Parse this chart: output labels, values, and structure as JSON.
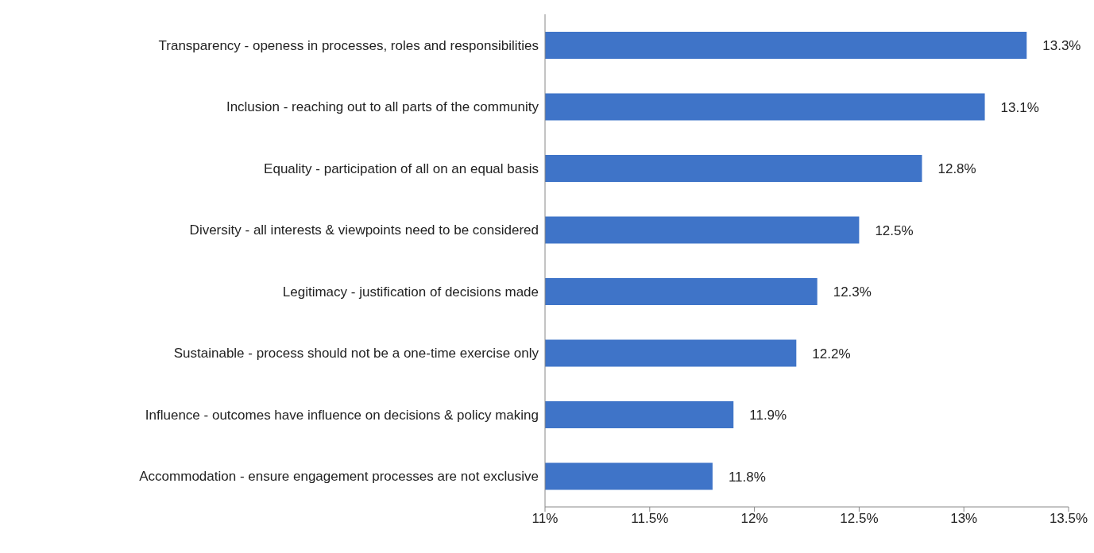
{
  "chart_data": {
    "type": "bar",
    "orientation": "horizontal",
    "categories": [
      "Transparency - openess in processes, roles and responsibilities",
      "Inclusion - reaching out to all parts of the community",
      "Equality - participation of all on an equal basis",
      "Diversity - all interests & viewpoints need to be considered",
      "Legitimacy - justification of decisions made",
      "Sustainable - process should not be a one-time exercise only",
      "Influence - outcomes have influence on decisions & policy making",
      "Accommodation - ensure engagement processes are not exclusive"
    ],
    "values": [
      13.3,
      13.1,
      12.8,
      12.5,
      12.3,
      12.2,
      11.9,
      11.8
    ],
    "value_labels": [
      "13.3%",
      "13.1%",
      "12.8%",
      "12.5%",
      "12.3%",
      "12.2%",
      "11.9%",
      "11.8%"
    ],
    "color": "#3f74c8",
    "xlim": [
      11,
      13.5
    ],
    "xticks": [
      {
        "value": 11,
        "label": "11%"
      },
      {
        "value": 11.5,
        "label": "11.5%"
      },
      {
        "value": 12,
        "label": "12%"
      },
      {
        "value": 12.5,
        "label": "12.5%"
      },
      {
        "value": 13,
        "label": "13%"
      },
      {
        "value": 13.5,
        "label": "13.5%"
      }
    ],
    "grid": false,
    "legend": false
  }
}
